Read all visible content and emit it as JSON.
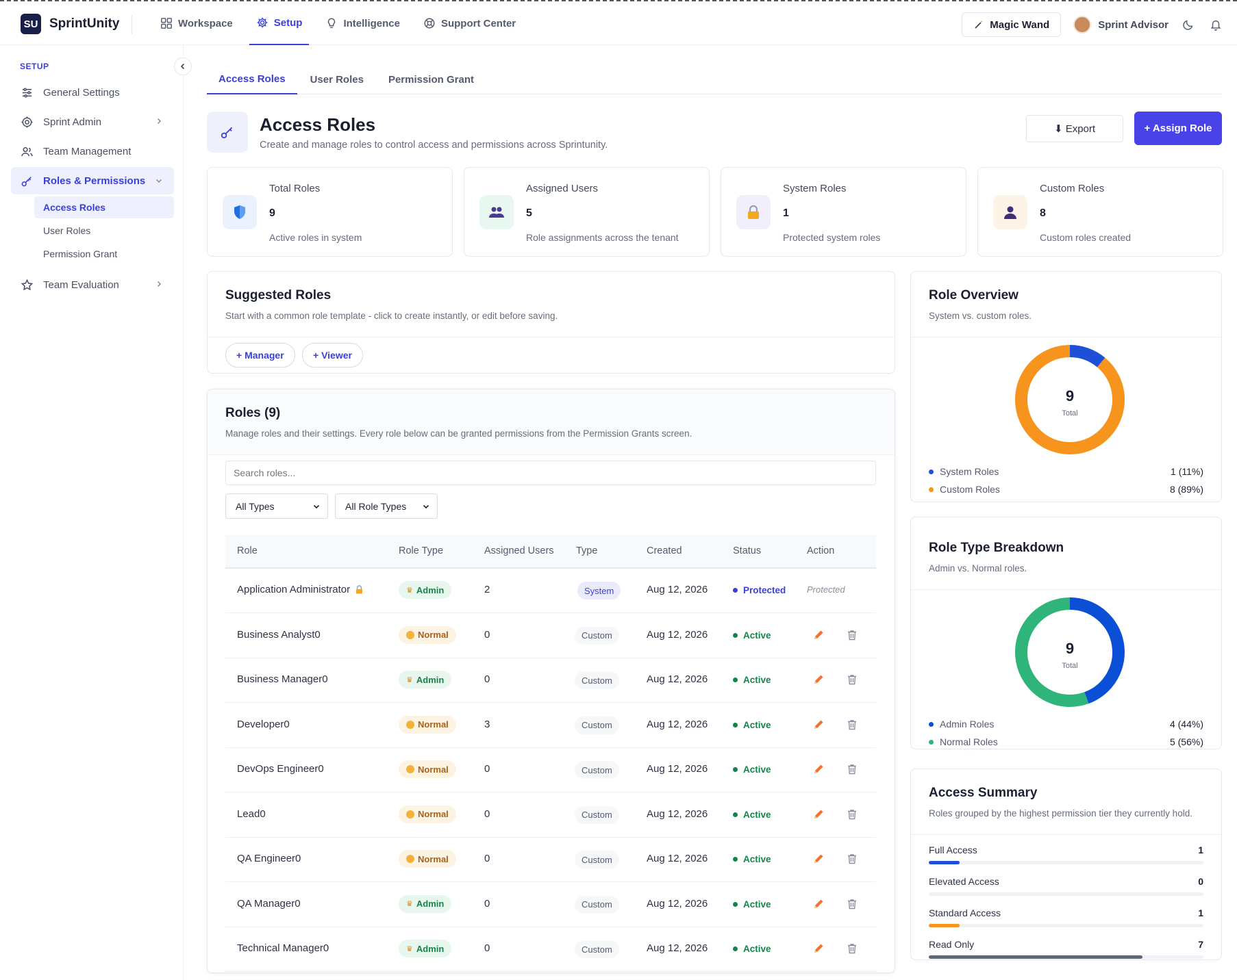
{
  "app": {
    "logo": "SU",
    "name": "SprintUnity"
  },
  "topnav": [
    {
      "label": "Workspace",
      "icon": "grid-icon",
      "active": false
    },
    {
      "label": "Setup",
      "icon": "gear-icon",
      "active": true
    },
    {
      "label": "Intelligence",
      "icon": "lightbulb-icon",
      "active": false
    },
    {
      "label": "Support Center",
      "icon": "lifebuoy-icon",
      "active": false
    }
  ],
  "header_right": {
    "magic_label": "Magic Wand",
    "advisor_label": "Sprint Advisor"
  },
  "sidebar": {
    "heading": "SETUP",
    "items": [
      {
        "label": "General Settings"
      },
      {
        "label": "Sprint Admin"
      },
      {
        "label": "Team Management"
      },
      {
        "label": "Roles & Permissions"
      },
      {
        "label": "Team Evaluation"
      }
    ],
    "subitems": [
      {
        "label": "Access Roles"
      },
      {
        "label": "User Roles"
      },
      {
        "label": "Permission Grant"
      }
    ]
  },
  "tabs": [
    {
      "label": "Access Roles"
    },
    {
      "label": "User Roles"
    },
    {
      "label": "Permission Grant"
    }
  ],
  "page": {
    "title": "Access Roles",
    "subtitle": "Create and manage roles to control access and permissions across Sprintunity.",
    "export_label": "⬇ Export",
    "assign_label": "+ Assign Role"
  },
  "stats": [
    {
      "label": "Total Roles",
      "value": "9",
      "desc": "Active roles in system",
      "icon": "shield-icon",
      "bg": "#eaf1fd"
    },
    {
      "label": "Assigned Users",
      "value": "5",
      "desc": "Role assignments across the tenant",
      "icon": "users-icon",
      "bg": "#e8f7f0"
    },
    {
      "label": "System Roles",
      "value": "1",
      "desc": "Protected system roles",
      "icon": "lock-icon",
      "bg": "#f1effb"
    },
    {
      "label": "Custom Roles",
      "value": "8",
      "desc": "Custom roles created",
      "icon": "person-icon",
      "bg": "#fdf3e6"
    }
  ],
  "suggested": {
    "title": "Suggested Roles",
    "subtitle": "Start with a common role template - click to create instantly, or edit before saving.",
    "buttons": [
      {
        "label": "+ Manager"
      },
      {
        "label": "+ Viewer"
      }
    ]
  },
  "roles": {
    "title": "Roles (9)",
    "subtitle": "Manage roles and their settings. Every role below can be granted permissions from the Permission Grants screen.",
    "search_placeholder": "Search roles...",
    "filter_type": "All Types",
    "filter_role_type": "All Role Types",
    "columns": [
      "Role",
      "Role Type",
      "Assigned Users",
      "Type",
      "Created",
      "Status",
      "Action"
    ],
    "rows": [
      {
        "name": "Application Administrator",
        "lock": true,
        "role_type": "Admin",
        "users": "2",
        "type": "System",
        "created": "Aug 12, 2026",
        "status": "Protected",
        "action": "Protected"
      },
      {
        "name": "Business Analyst0",
        "lock": false,
        "role_type": "Normal",
        "users": "0",
        "type": "Custom",
        "created": "Aug 12, 2026",
        "status": "Active",
        "action": ""
      },
      {
        "name": "Business Manager0",
        "lock": false,
        "role_type": "Admin",
        "users": "0",
        "type": "Custom",
        "created": "Aug 12, 2026",
        "status": "Active",
        "action": ""
      },
      {
        "name": "Developer0",
        "lock": false,
        "role_type": "Normal",
        "users": "3",
        "type": "Custom",
        "created": "Aug 12, 2026",
        "status": "Active",
        "action": ""
      },
      {
        "name": "DevOps Engineer0",
        "lock": false,
        "role_type": "Normal",
        "users": "0",
        "type": "Custom",
        "created": "Aug 12, 2026",
        "status": "Active",
        "action": ""
      },
      {
        "name": "Lead0",
        "lock": false,
        "role_type": "Normal",
        "users": "0",
        "type": "Custom",
        "created": "Aug 12, 2026",
        "status": "Active",
        "action": ""
      },
      {
        "name": "QA Engineer0",
        "lock": false,
        "role_type": "Normal",
        "users": "0",
        "type": "Custom",
        "created": "Aug 12, 2026",
        "status": "Active",
        "action": ""
      },
      {
        "name": "QA Manager0",
        "lock": false,
        "role_type": "Admin",
        "users": "0",
        "type": "Custom",
        "created": "Aug 12, 2026",
        "status": "Active",
        "action": ""
      },
      {
        "name": "Technical Manager0",
        "lock": false,
        "role_type": "Admin",
        "users": "0",
        "type": "Custom",
        "created": "Aug 12, 2026",
        "status": "Active",
        "action": ""
      }
    ]
  },
  "chart_data": [
    {
      "type": "pie",
      "title": "Role Overview",
      "subtitle": "System vs. custom roles.",
      "center_value": "9",
      "center_label": "Total",
      "categories": [
        "System Roles",
        "Custom Roles"
      ],
      "values": [
        1,
        8
      ],
      "value_labels": [
        "1 (11%)",
        "8 (89%)"
      ],
      "colors": [
        "#1d4fd8",
        "#f7941d"
      ]
    },
    {
      "type": "pie",
      "title": "Role Type Breakdown",
      "subtitle": "Admin vs. Normal roles.",
      "center_value": "9",
      "center_label": "Total",
      "categories": [
        "Admin Roles",
        "Normal Roles"
      ],
      "values": [
        4,
        5
      ],
      "value_labels": [
        "4 (44%)",
        "5 (56%)"
      ],
      "colors": [
        "#0b4fd6",
        "#2fb57a"
      ]
    },
    {
      "type": "bar",
      "title": "Access Summary",
      "subtitle": "Roles grouped by the highest permission tier they currently hold.",
      "categories": [
        "Full Access",
        "Elevated Access",
        "Standard Access",
        "Read Only"
      ],
      "values": [
        1,
        0,
        1,
        7
      ],
      "colors": [
        "#1d4fd8",
        "#9aa0ad",
        "#f7941d",
        "#5f6675"
      ]
    }
  ],
  "colors": {
    "accent": "#3b3fd8",
    "primary_button": "#4842e8",
    "active_status": "#17834a",
    "protected_status": "#3b3fd8"
  }
}
